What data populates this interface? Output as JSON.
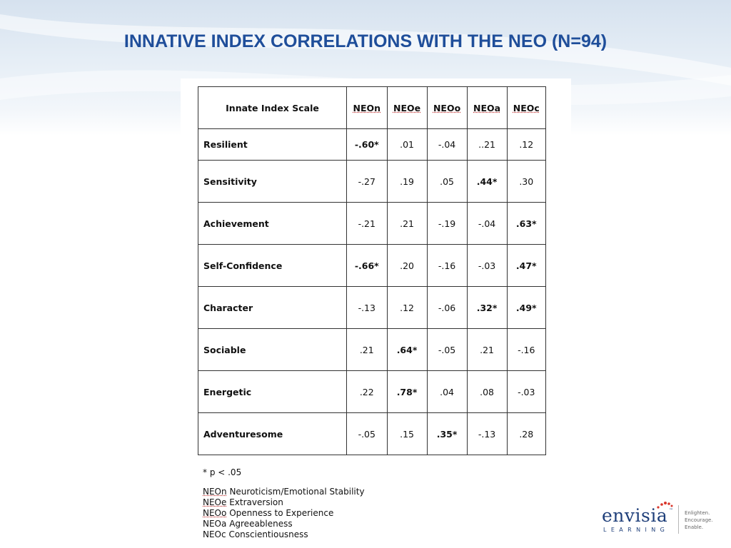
{
  "title": "INNATIVE INDEX CORRELATIONS WITH THE NEO (N=94)",
  "table": {
    "scale_header": "Innate Index Scale",
    "columns": [
      "NEOn",
      "NEOe",
      "NEOo",
      "NEOa",
      "NEOc"
    ],
    "rows": [
      {
        "scale": "Resilient",
        "values": [
          "-.60*",
          ".01",
          "-.04",
          "..21",
          ".12"
        ],
        "significant": [
          true,
          false,
          false,
          false,
          false
        ]
      },
      {
        "scale": "Sensitivity",
        "values": [
          "-.27",
          ".19",
          ".05",
          ".44*",
          ".30"
        ],
        "significant": [
          false,
          false,
          false,
          true,
          false
        ]
      },
      {
        "scale": "Achievement",
        "values": [
          "-.21",
          ".21",
          "-.19",
          "-.04",
          ".63*"
        ],
        "significant": [
          false,
          false,
          false,
          false,
          true
        ]
      },
      {
        "scale": "Self-Confidence",
        "values": [
          "-.66*",
          ".20",
          "-.16",
          "-.03",
          ".47*"
        ],
        "significant": [
          true,
          false,
          false,
          false,
          true
        ]
      },
      {
        "scale": "Character",
        "values": [
          "-.13",
          ".12",
          "-.06",
          ".32*",
          ".49*"
        ],
        "significant": [
          false,
          false,
          false,
          true,
          true
        ]
      },
      {
        "scale": "Sociable",
        "values": [
          ".21",
          ".64*",
          "-.05",
          ".21",
          "-.16"
        ],
        "significant": [
          false,
          true,
          false,
          false,
          false
        ]
      },
      {
        "scale": "Energetic",
        "values": [
          ".22",
          ".78*",
          ".04",
          ".08",
          "-.03"
        ],
        "significant": [
          false,
          true,
          false,
          false,
          false
        ]
      },
      {
        "scale": "Adventuresome",
        "values": [
          "-.05",
          ".15",
          ".35*",
          "-.13",
          ".28"
        ],
        "significant": [
          false,
          false,
          true,
          false,
          false
        ]
      }
    ]
  },
  "notes": {
    "significance": "* p < .05",
    "legend": [
      {
        "abbr": "NEOn",
        "meaning": "Neuroticism/Emotional Stability",
        "underlined": true
      },
      {
        "abbr": "NEOe",
        "meaning": "Extraversion",
        "underlined": true
      },
      {
        "abbr": "NEOo",
        "meaning": "Openness to Experience",
        "underlined": true
      },
      {
        "abbr": "NEOa",
        "meaning": "Agreeableness",
        "underlined": false
      },
      {
        "abbr": "NEOc",
        "meaning": "Conscientiousness",
        "underlined": false
      }
    ]
  },
  "logo": {
    "wordmark": "envisia",
    "trademark": "™",
    "subtitle": "LEARNING",
    "tagline": [
      "Enlighten.",
      "Encourage.",
      "Enable."
    ],
    "dot_color": "#d9362b",
    "brand_color": "#1f3f7a"
  },
  "colors": {
    "title": "#1f4e9a",
    "band": "#d6e2ef"
  }
}
